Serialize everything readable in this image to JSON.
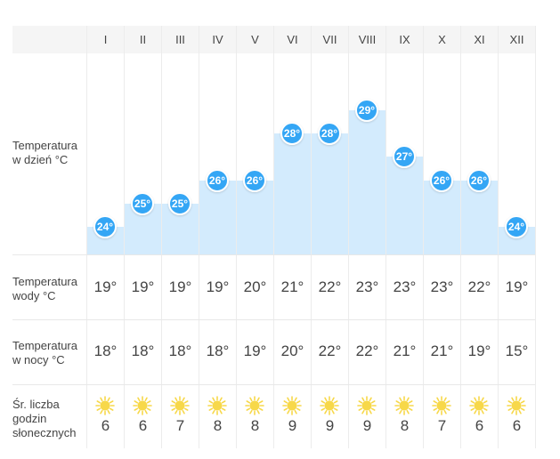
{
  "months": [
    "I",
    "II",
    "III",
    "IV",
    "V",
    "VI",
    "VII",
    "VIII",
    "IX",
    "X",
    "XI",
    "XII"
  ],
  "rows": {
    "day_label": "Temperatura w dzień °C",
    "water_label": "Temperatura wody °C",
    "night_label": "Temperatura w nocy °C",
    "sun_label": "Śr. liczba godzin słonecznych"
  },
  "day_temps": [
    24,
    25,
    25,
    26,
    26,
    28,
    28,
    29,
    27,
    26,
    26,
    24
  ],
  "day_temps_text": [
    "24°",
    "25°",
    "25°",
    "26°",
    "26°",
    "28°",
    "28°",
    "29°",
    "27°",
    "26°",
    "26°",
    "24°"
  ],
  "water_temps": [
    "19°",
    "19°",
    "19°",
    "19°",
    "20°",
    "21°",
    "22°",
    "23°",
    "23°",
    "23°",
    "22°",
    "19°"
  ],
  "night_temps": [
    "18°",
    "18°",
    "18°",
    "18°",
    "19°",
    "20°",
    "22°",
    "22°",
    "21°",
    "21°",
    "19°",
    "15°"
  ],
  "sun_hours": [
    "6",
    "6",
    "7",
    "8",
    "8",
    "9",
    "9",
    "9",
    "8",
    "7",
    "6",
    "6"
  ],
  "sun_icon": "sun-icon",
  "colors": {
    "bar": "#d3ebfd",
    "bubble": "#34a6f5",
    "sun": "#f7d84a",
    "header_bg": "#f5f5f5"
  }
}
